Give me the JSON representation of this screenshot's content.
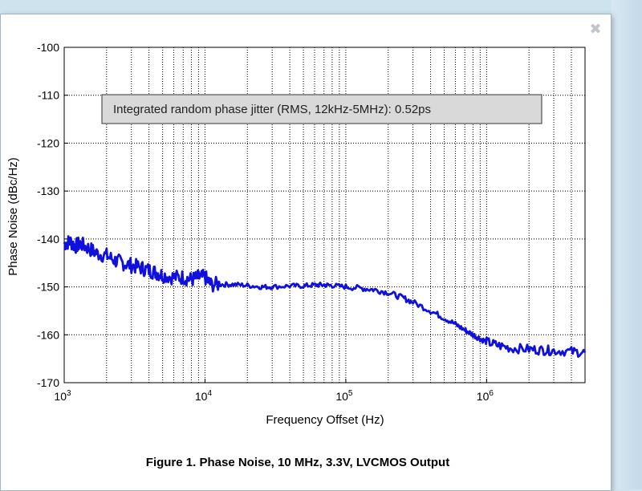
{
  "window": {
    "close_icon": "close-icon"
  },
  "chart_data": {
    "type": "line",
    "title": "",
    "caption": "Figure 1. Phase Noise, 10 MHz, 3.3V, LVCMOS Output",
    "xlabel": "Frequency Offset (Hz)",
    "ylabel": "Phase Noise (dBc/Hz)",
    "xscale": "log",
    "xlim": [
      1000,
      5000000
    ],
    "ylim": [
      -170,
      -100
    ],
    "grid": true,
    "x_ticks": [
      {
        "value": 1000,
        "base": "10",
        "exp": "3"
      },
      {
        "value": 10000,
        "base": "10",
        "exp": "4"
      },
      {
        "value": 100000,
        "base": "10",
        "exp": "5"
      },
      {
        "value": 1000000,
        "base": "10",
        "exp": "6"
      }
    ],
    "y_ticks": [
      {
        "value": -100,
        "label": "-100"
      },
      {
        "value": -110,
        "label": "-110"
      },
      {
        "value": -120,
        "label": "-120"
      },
      {
        "value": -130,
        "label": "-130"
      },
      {
        "value": -140,
        "label": "-140"
      },
      {
        "value": -150,
        "label": "-150"
      },
      {
        "value": -160,
        "label": "-160"
      },
      {
        "value": -170,
        "label": "-170"
      }
    ],
    "annotation": "Integrated random phase jitter (RMS, 12kHz-5MHz): 0.52ps",
    "series": [
      {
        "name": "Phase Noise",
        "color": "#1010dd",
        "points": [
          [
            1000,
            -141
          ],
          [
            1100,
            -140.5
          ],
          [
            1200,
            -141.5
          ],
          [
            1300,
            -141
          ],
          [
            1500,
            -142
          ],
          [
            1700,
            -143
          ],
          [
            2000,
            -143.5
          ],
          [
            2300,
            -144.5
          ],
          [
            2600,
            -145
          ],
          [
            3000,
            -145.5
          ],
          [
            3500,
            -146
          ],
          [
            4000,
            -146.5
          ],
          [
            4500,
            -147
          ],
          [
            5000,
            -147.5
          ],
          [
            6000,
            -148
          ],
          [
            7000,
            -148
          ],
          [
            8000,
            -148.5
          ],
          [
            9000,
            -148
          ],
          [
            10000,
            -148
          ],
          [
            11000,
            -149.5
          ],
          [
            13000,
            -149.5
          ],
          [
            16000,
            -149.5
          ],
          [
            20000,
            -149.7
          ],
          [
            25000,
            -150
          ],
          [
            30000,
            -150
          ],
          [
            40000,
            -149.8
          ],
          [
            50000,
            -149.8
          ],
          [
            60000,
            -149.6
          ],
          [
            70000,
            -149.6
          ],
          [
            80000,
            -149.7
          ],
          [
            100000,
            -150
          ],
          [
            130000,
            -150.3
          ],
          [
            160000,
            -150.6
          ],
          [
            200000,
            -151.2
          ],
          [
            250000,
            -152.2
          ],
          [
            300000,
            -153.2
          ],
          [
            400000,
            -155
          ],
          [
            500000,
            -156.5
          ],
          [
            600000,
            -157.8
          ],
          [
            700000,
            -159
          ],
          [
            800000,
            -160
          ],
          [
            900000,
            -160.8
          ],
          [
            1000000,
            -161.5
          ],
          [
            1200000,
            -162.2
          ],
          [
            1500000,
            -162.8
          ],
          [
            2000000,
            -163
          ],
          [
            2500000,
            -163.2
          ],
          [
            3000000,
            -163.3
          ],
          [
            4000000,
            -163.5
          ],
          [
            5000000,
            -163.7
          ]
        ]
      }
    ]
  }
}
